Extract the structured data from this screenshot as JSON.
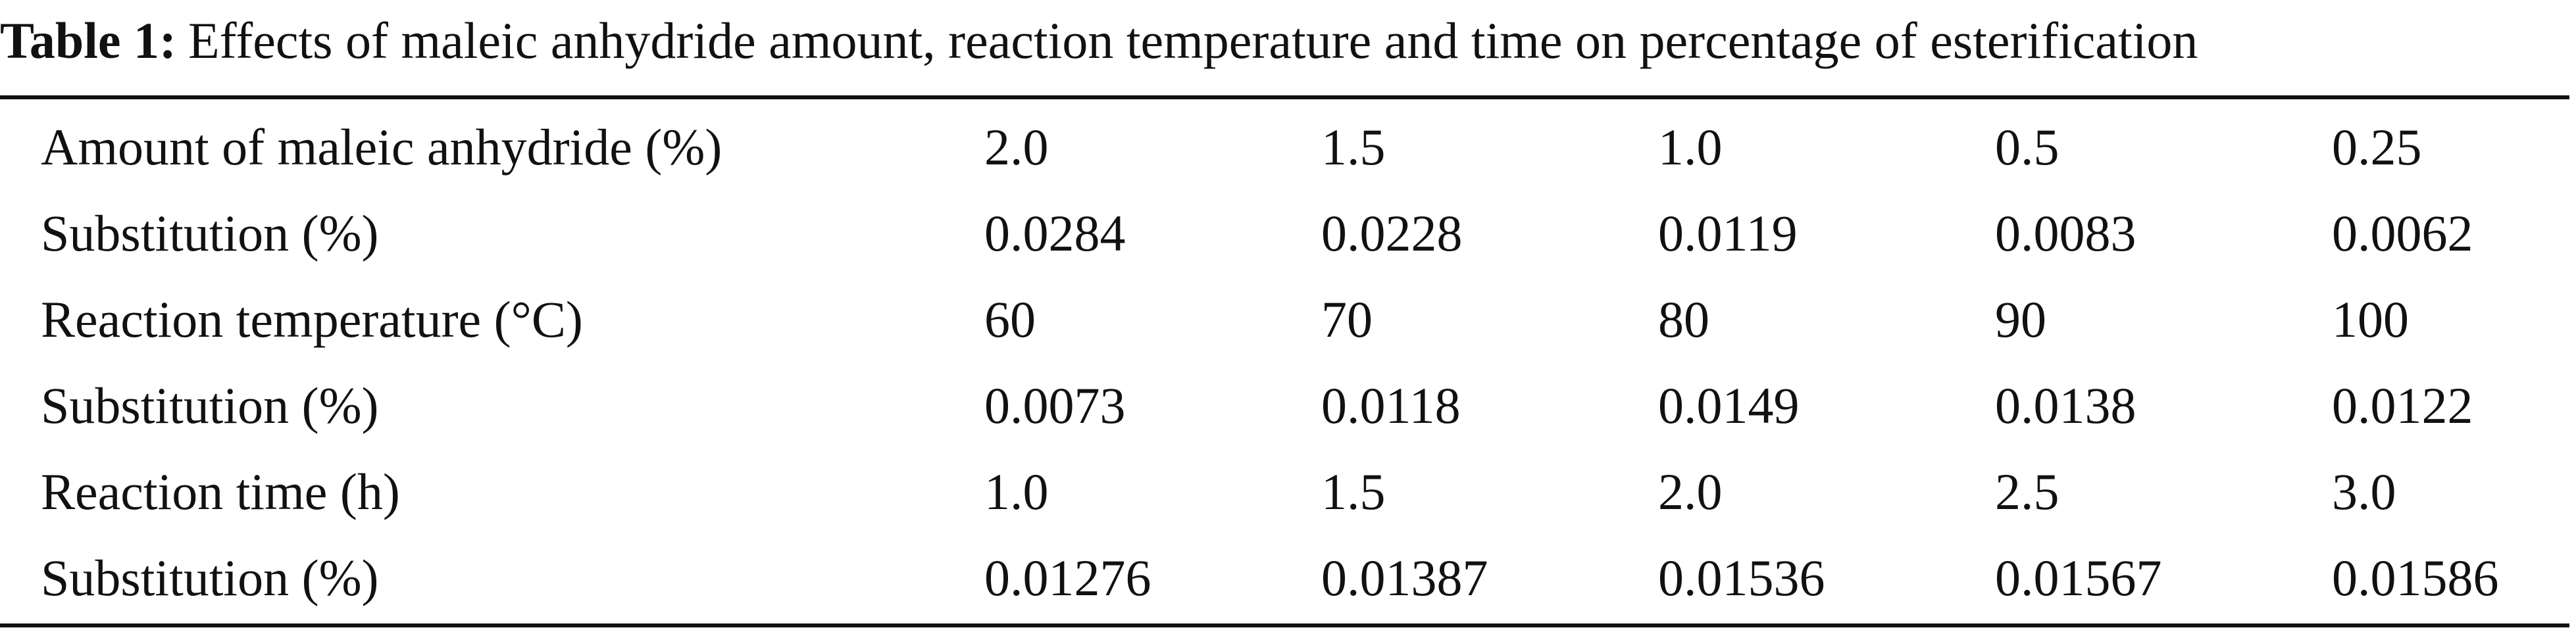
{
  "caption": {
    "label": "Table 1:",
    "text": "Effects of maleic anhydride amount, reaction temperature and time on percentage of esterification"
  },
  "table": {
    "rows": [
      {
        "label": "Amount of maleic anhydride (%)",
        "values": [
          "2.0",
          "1.5",
          "1.0",
          "0.5",
          "0.25"
        ]
      },
      {
        "label": "Substitution (%)",
        "values": [
          "0.0284",
          "0.0228",
          "0.0119",
          "0.0083",
          "0.0062"
        ]
      },
      {
        "label": "Reaction temperature (°C)",
        "values": [
          "60",
          "70",
          "80",
          "90",
          "100"
        ]
      },
      {
        "label": "Substitution (%)",
        "values": [
          "0.0073",
          "0.0118",
          "0.0149",
          "0.0138",
          "0.0122"
        ]
      },
      {
        "label": "Reaction time (h)",
        "values": [
          "1.0",
          "1.5",
          "2.0",
          "2.5",
          "3.0"
        ]
      },
      {
        "label": "Substitution (%)",
        "values": [
          "0.01276",
          "0.01387",
          "0.01536",
          "0.01567",
          "0.01586"
        ]
      }
    ]
  }
}
